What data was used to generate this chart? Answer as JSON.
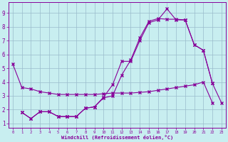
{
  "bg_color": "#c8eef0",
  "line_color": "#880099",
  "grid_color": "#99bbcc",
  "xlabel": "Windchill (Refroidissement éolien,°C)",
  "ylim": [
    0.7,
    9.8
  ],
  "xlim": [
    -0.5,
    23.5
  ],
  "yticks": [
    1,
    2,
    3,
    4,
    5,
    6,
    7,
    8,
    9
  ],
  "xticks": [
    0,
    1,
    2,
    3,
    4,
    5,
    6,
    7,
    8,
    9,
    10,
    11,
    12,
    13,
    14,
    15,
    16,
    17,
    18,
    19,
    20,
    21,
    22,
    23
  ],
  "line1_x": [
    0,
    1,
    2,
    3,
    4,
    5,
    6,
    7,
    8,
    9,
    10,
    11,
    12,
    13,
    14,
    15,
    16,
    17,
    18,
    19,
    20,
    21,
    22,
    23
  ],
  "line1_y": [
    5.3,
    3.6,
    3.5,
    3.3,
    3.2,
    3.1,
    3.1,
    3.1,
    3.1,
    3.1,
    3.15,
    3.2,
    3.2,
    3.2,
    3.25,
    3.3,
    3.4,
    3.5,
    3.6,
    3.7,
    3.8,
    4.0,
    2.5,
    null
  ],
  "line2_x": [
    1,
    2,
    3,
    4,
    5,
    6,
    7,
    8,
    9,
    10,
    11,
    12,
    13,
    14,
    15,
    16,
    17,
    18,
    19,
    20,
    21,
    22
  ],
  "line2_y": [
    1.8,
    1.35,
    1.85,
    1.85,
    1.5,
    1.5,
    1.5,
    2.1,
    2.2,
    2.9,
    3.8,
    5.5,
    5.5,
    7.0,
    8.3,
    8.5,
    9.3,
    8.5,
    8.5,
    6.7,
    6.3,
    3.9
  ],
  "line3_x": [
    1,
    2,
    3,
    4,
    5,
    6,
    7,
    8,
    9,
    10,
    11,
    12,
    13,
    14,
    15,
    16,
    17,
    18,
    19,
    20,
    21,
    22,
    23
  ],
  "line3_y": [
    1.8,
    1.35,
    1.85,
    1.85,
    1.5,
    1.5,
    1.5,
    2.1,
    2.2,
    2.85,
    3.0,
    4.5,
    5.6,
    7.2,
    8.4,
    8.6,
    8.55,
    8.55,
    8.5,
    6.7,
    6.3,
    3.9,
    2.5
  ]
}
